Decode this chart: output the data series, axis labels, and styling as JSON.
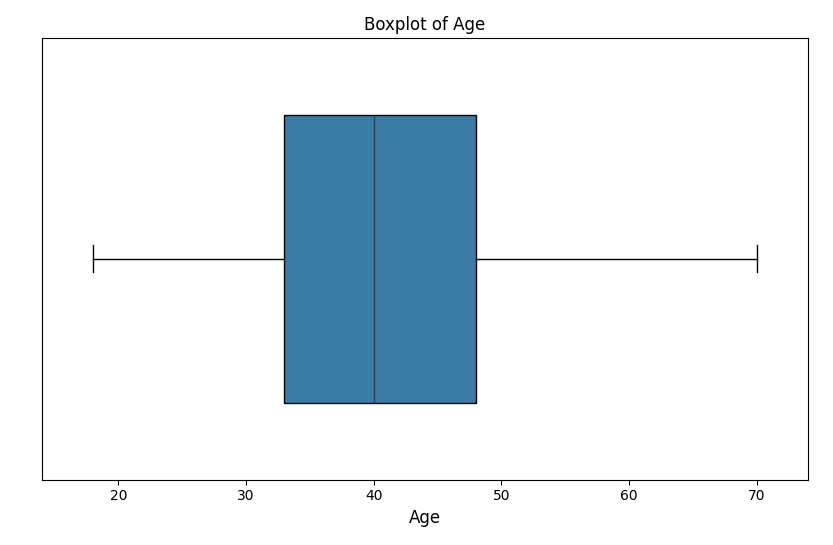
{
  "title": "Boxplot of Age",
  "xlabel": "Age",
  "ylabel": "",
  "whislo": 18,
  "q1": 33,
  "med": 40,
  "q3": 48,
  "whishi": 70,
  "box_facecolor": "#3a7ca5",
  "median_color": "#2c3e50",
  "line_color": "black",
  "xticks": [
    20,
    30,
    40,
    50,
    60,
    70
  ],
  "figsize": [
    8.33,
    5.45
  ],
  "dpi": 100,
  "title_fontsize": 12,
  "label_fontsize": 12,
  "box_width": 0.85,
  "xlim": [
    14,
    74
  ]
}
